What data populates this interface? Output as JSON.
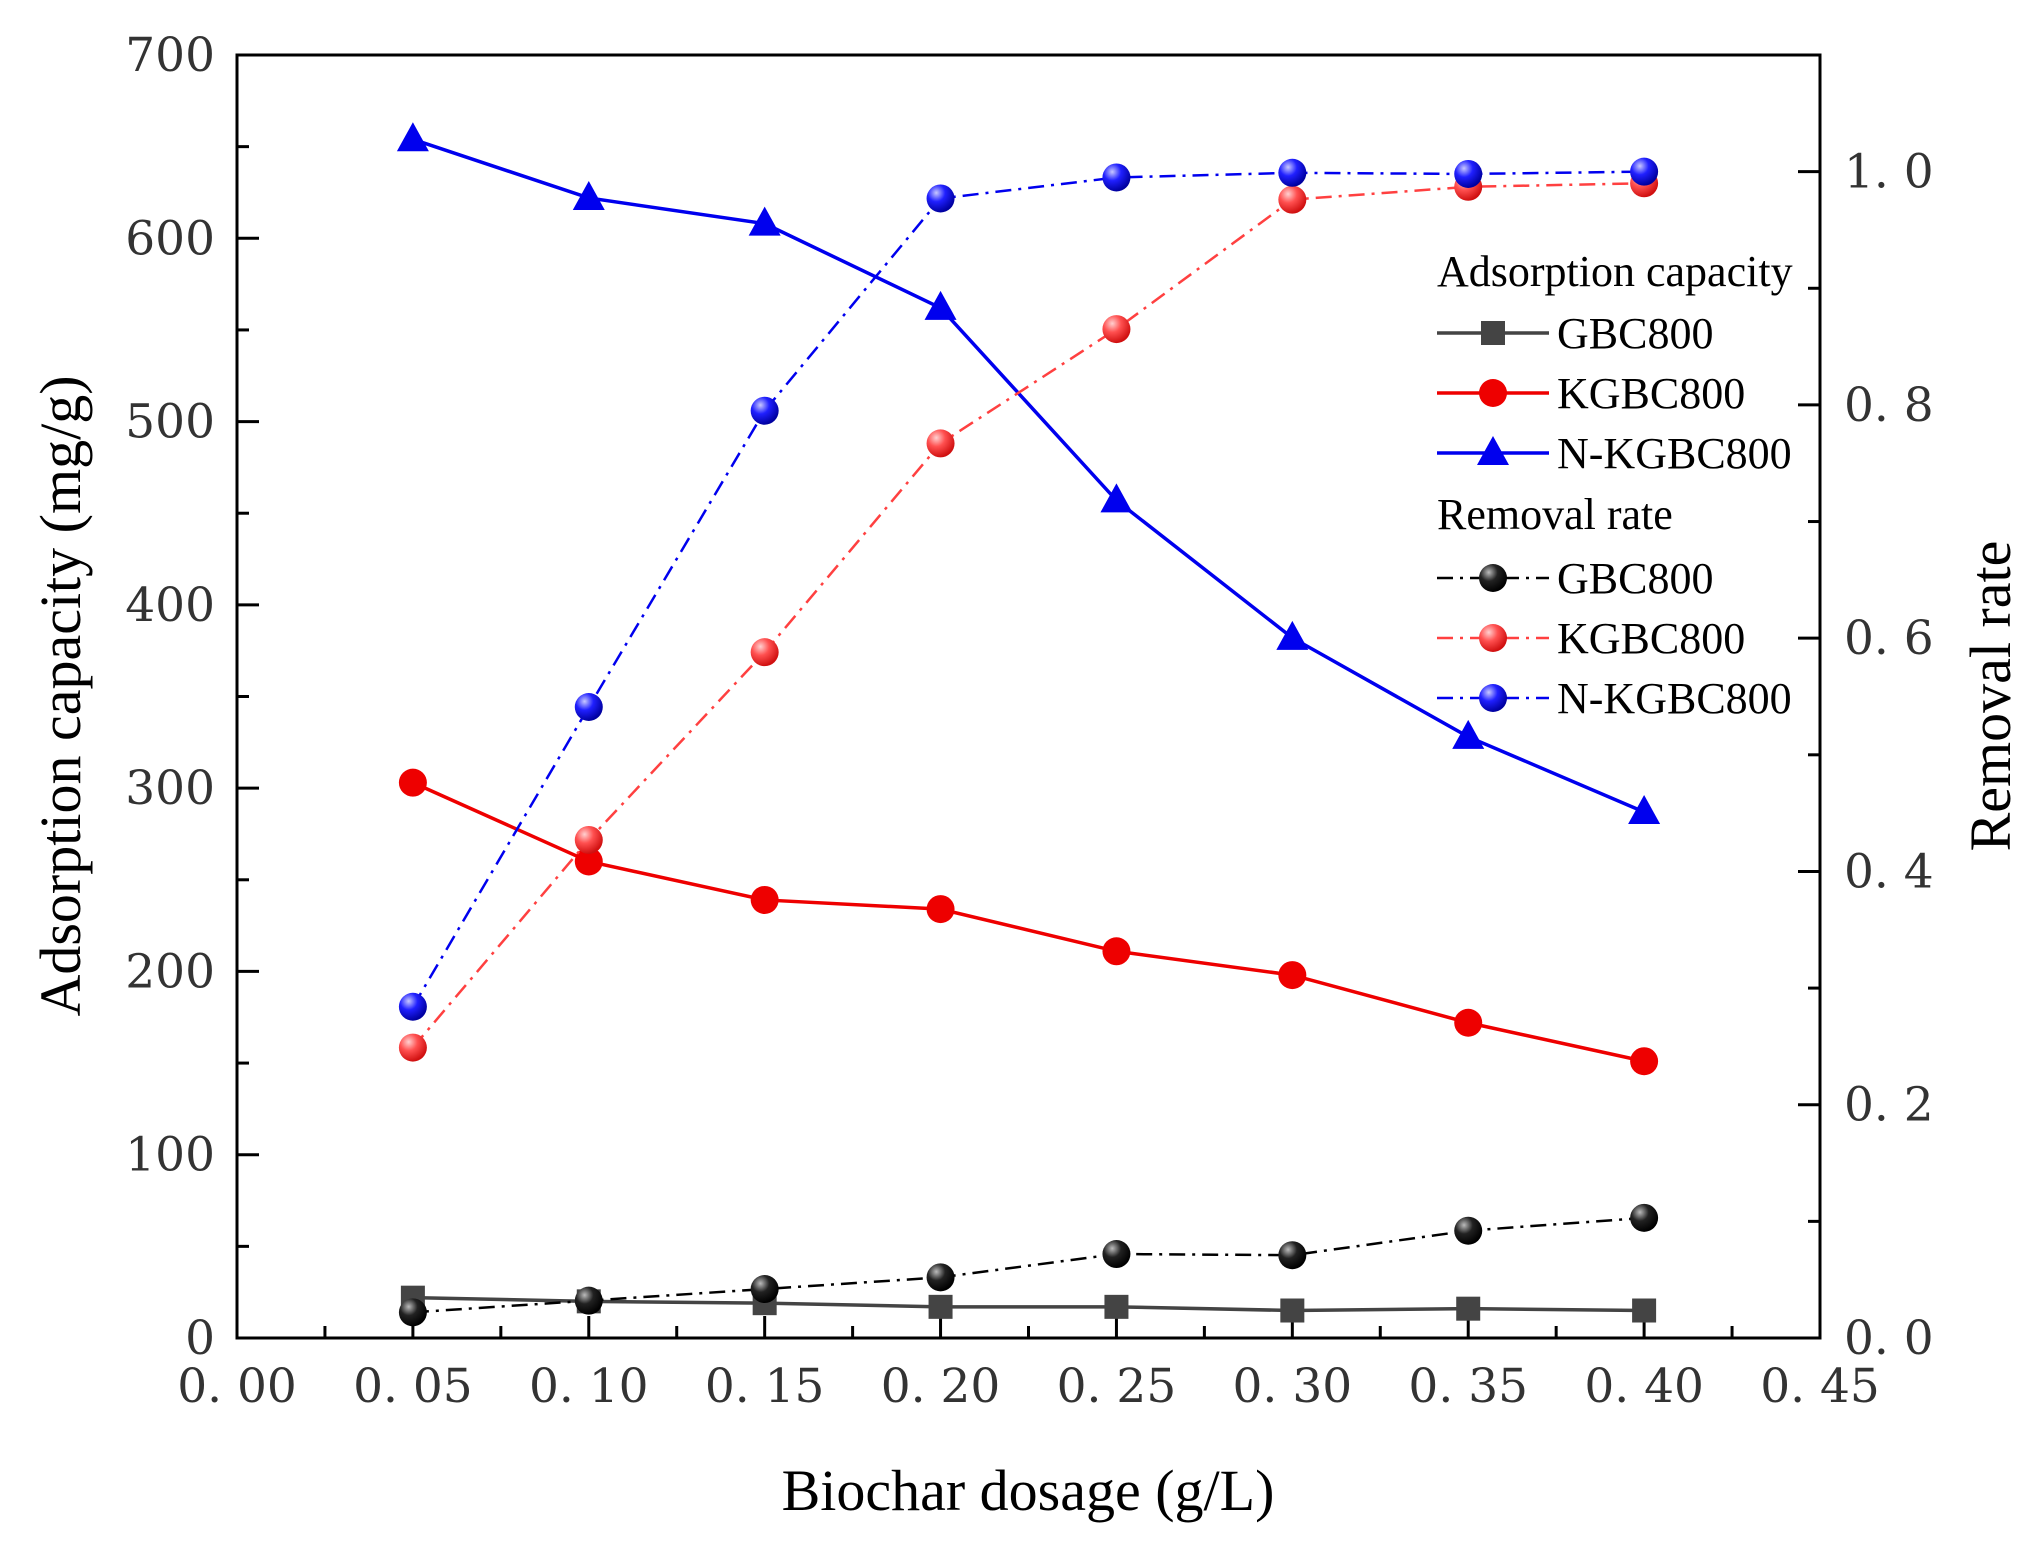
{
  "chart_data": {
    "type": "line",
    "title": "",
    "xlabel": "Biochar dosage (g/L)",
    "ylabel_left": "Adsorption capacity (mg/g)",
    "ylabel_right": "Removal rate",
    "xlim": [
      0,
      0.45
    ],
    "ylim_left": [
      0,
      700
    ],
    "ylim_right": [
      0,
      1.1
    ],
    "x_ticks": [
      "0. 00",
      "0. 05",
      "0. 10",
      "0. 15",
      "0. 20",
      "0. 25",
      "0. 30",
      "0. 35",
      "0. 40",
      "0. 45"
    ],
    "y_left_ticks": [
      "0",
      "100",
      "200",
      "300",
      "400",
      "500",
      "600",
      "700"
    ],
    "y_right_ticks": [
      "0. 0",
      "0. 2",
      "0. 4",
      "0. 6",
      "0. 8",
      "1. 0"
    ],
    "x": [
      0.05,
      0.1,
      0.15,
      0.2,
      0.25,
      0.3,
      0.35,
      0.4
    ],
    "legend": {
      "position": "right",
      "group1_title": "Adsorption capacity",
      "group2_title": "Removal rate"
    },
    "series": [
      {
        "name": "GBC800",
        "group": "Adsorption capacity",
        "axis": "left",
        "color": "#444444",
        "marker": "square",
        "dash": "solid",
        "values": [
          22,
          20,
          19,
          17,
          17,
          15,
          16,
          15
        ]
      },
      {
        "name": "KGBC800",
        "group": "Adsorption capacity",
        "axis": "left",
        "color": "#ee0000",
        "marker": "circle",
        "dash": "solid",
        "values": [
          303,
          260,
          239,
          234,
          211,
          198,
          172,
          151
        ]
      },
      {
        "name": "N-KGBC800",
        "group": "Adsorption capacity",
        "axis": "left",
        "color": "#0000ee",
        "marker": "triangle",
        "dash": "solid",
        "values": [
          654,
          622,
          608,
          562,
          457,
          382,
          328,
          287
        ]
      },
      {
        "name": "GBC800",
        "group": "Removal rate",
        "axis": "right",
        "color": "#000000",
        "marker": "sphere",
        "dash": "dashdot",
        "values": [
          0.022,
          0.032,
          0.042,
          0.052,
          0.072,
          0.071,
          0.092,
          0.103
        ]
      },
      {
        "name": "KGBC800",
        "group": "Removal rate",
        "axis": "right",
        "color": "#ff4040",
        "marker": "sphere",
        "dash": "dashdot",
        "values": [
          0.249,
          0.427,
          0.588,
          0.767,
          0.865,
          0.976,
          0.987,
          0.99
        ]
      },
      {
        "name": "N-KGBC800",
        "group": "Removal rate",
        "axis": "right",
        "color": "#0000ee",
        "marker": "sphere",
        "dash": "dashdot",
        "values": [
          0.284,
          0.541,
          0.795,
          0.977,
          0.995,
          0.999,
          0.998,
          1.0
        ]
      }
    ]
  }
}
